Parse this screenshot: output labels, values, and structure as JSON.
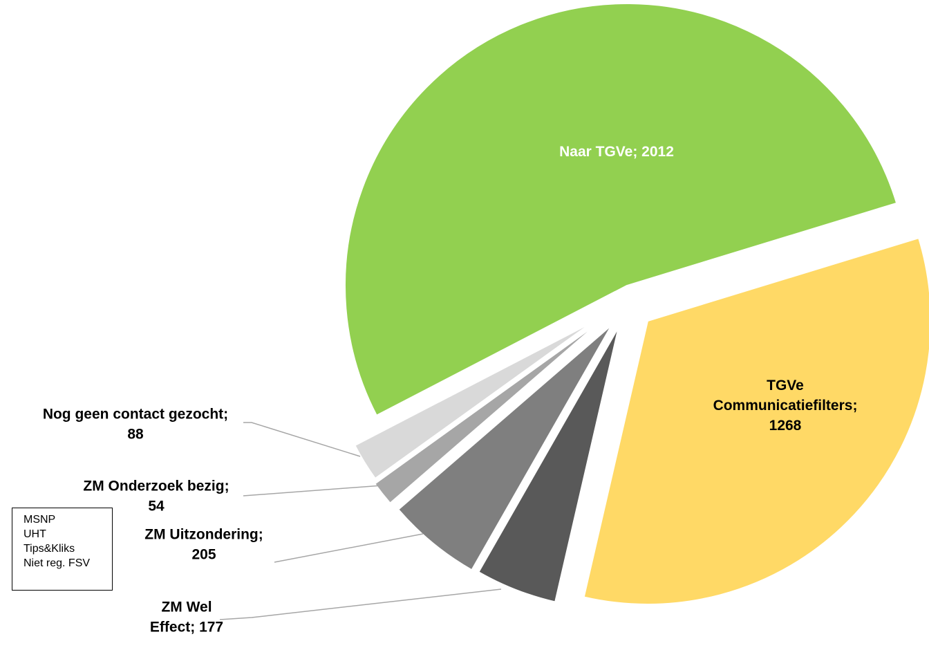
{
  "chart_data": {
    "type": "pie",
    "title": "",
    "slices": [
      {
        "label": "Naar TGVe",
        "value": 2012,
        "color": "#92D050",
        "label_color": "#ffffff",
        "label_lines": [
          "Naar TGVe; 2012"
        ]
      },
      {
        "label": "TGVe Communicatiefilters",
        "value": 1268,
        "color": "#FFD966",
        "label_color": "#000000",
        "label_lines": [
          "TGVe",
          "Communicatiefilters;",
          "1268"
        ]
      },
      {
        "label": "ZM Wel Effect",
        "value": 177,
        "color": "#595959",
        "label_color": "#000000",
        "label_lines": [
          "ZM Wel",
          "Effect; 177"
        ]
      },
      {
        "label": "ZM Uitzondering",
        "value": 205,
        "color": "#7F7F7F",
        "label_color": "#000000",
        "label_lines": [
          "ZM Uitzondering;",
          "205"
        ]
      },
      {
        "label": "ZM Onderzoek bezig",
        "value": 54,
        "color": "#A6A6A6",
        "label_color": "#000000",
        "label_lines": [
          "ZM Onderzoek bezig;",
          "54"
        ]
      },
      {
        "label": "Nog geen contact gezocht",
        "value": 88,
        "color": "#D9D9D9",
        "label_color": "#000000",
        "label_lines": [
          "Nog geen contact gezocht;",
          "88"
        ]
      }
    ],
    "legend": "none"
  },
  "note_box": {
    "lines": [
      "MSNP",
      "UHT",
      "Tips&Kliks",
      "Niet reg. FSV"
    ]
  }
}
